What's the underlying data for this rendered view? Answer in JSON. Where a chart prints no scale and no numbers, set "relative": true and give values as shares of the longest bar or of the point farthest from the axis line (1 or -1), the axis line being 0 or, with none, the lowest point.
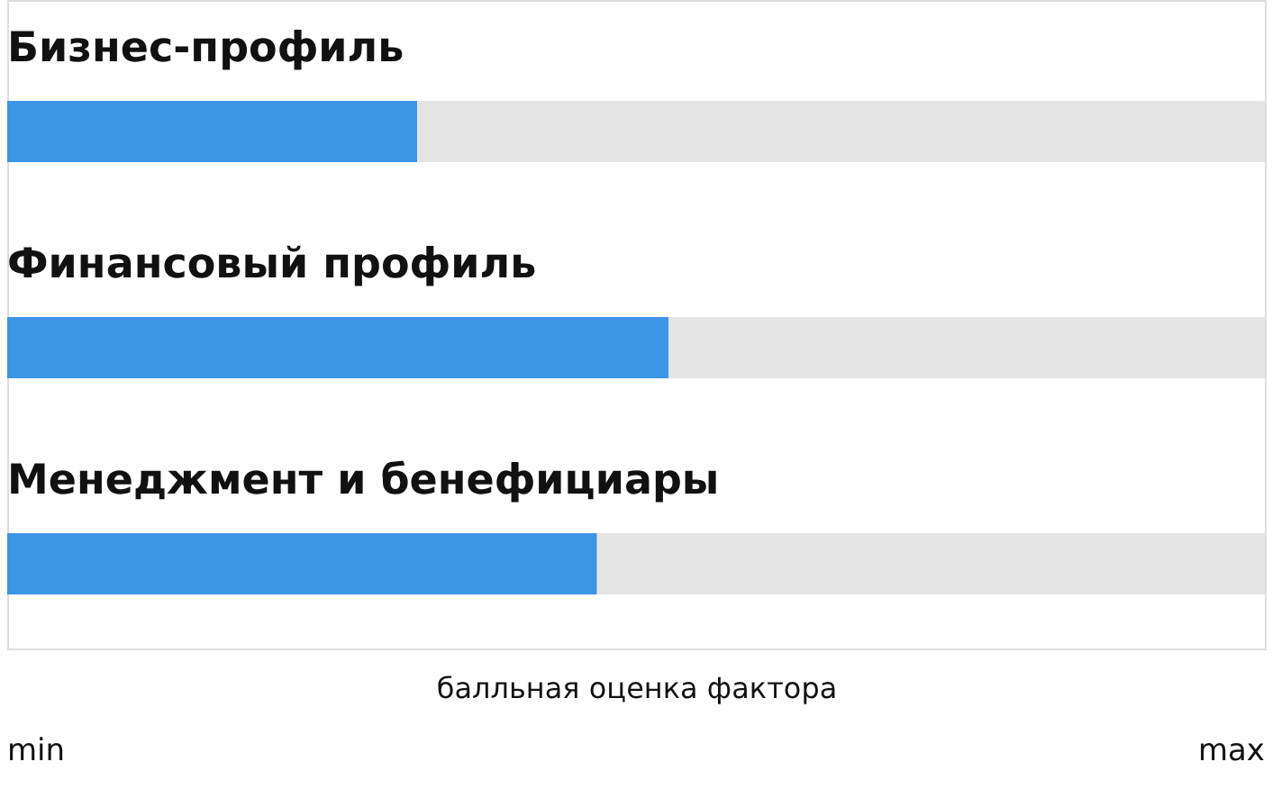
{
  "chart_data": {
    "type": "bar",
    "orientation": "horizontal",
    "stacked": true,
    "relative": true,
    "xlabel": "балльная оценка фактора",
    "categories": [
      "Бизнес-профиль",
      "Финансовый профиль",
      "Менеджмент и бенефициары"
    ],
    "series": [
      {
        "color": "#3d95e6",
        "values": [
          0.326,
          0.526,
          0.469
        ]
      },
      {
        "color": "#e5e5e5",
        "values": [
          0.674,
          0.474,
          0.531
        ]
      }
    ],
    "annotations": [
      "min",
      "max"
    ],
    "grid": false,
    "legend": false
  }
}
